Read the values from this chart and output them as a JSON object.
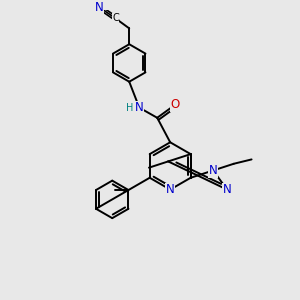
{
  "background_color": "#e8e8e8",
  "atom_colors": {
    "C": "#000000",
    "N": "#0000cc",
    "O": "#cc0000",
    "H": "#008080"
  },
  "bond_lw": 1.4,
  "font_size": 8.5,
  "font_size_small": 7.0
}
